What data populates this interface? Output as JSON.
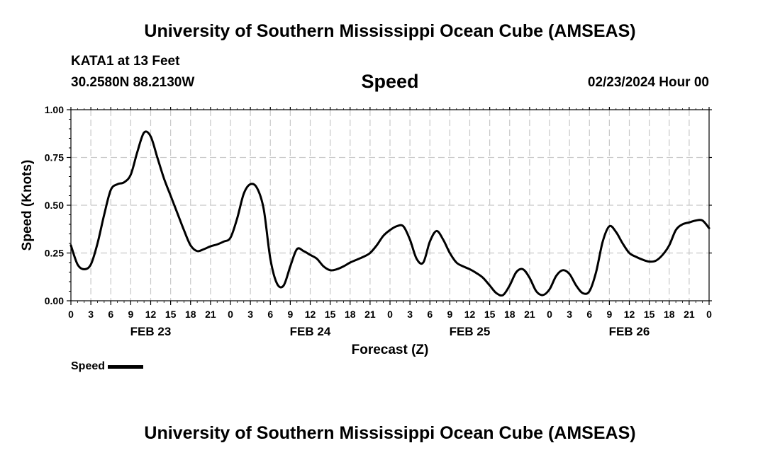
{
  "header": {
    "title": "University of Southern Mississippi Ocean Cube (AMSEAS)",
    "station": "KATA1 at 13 Feet",
    "coordinates": "30.2580N  88.2130W",
    "parameter": "Speed",
    "datetime": "02/23/2024 Hour 00"
  },
  "footer": {
    "title": "University of Southern Mississippi Ocean Cube (AMSEAS)"
  },
  "colors": {
    "line": "#000000",
    "grid": "#c8c8c8",
    "background": "#ffffff"
  },
  "chart_data": {
    "type": "line",
    "title": "Speed",
    "xlabel": "Forecast (Z)",
    "ylabel": "Speed (Knots)",
    "xlim": [
      0,
      96
    ],
    "ylim": [
      0,
      1
    ],
    "y_ticks": [
      0,
      0.25,
      0.5,
      0.75,
      1.0
    ],
    "y_tick_labels": [
      "0.00",
      "0.25",
      "0.50",
      "0.75",
      "1.00"
    ],
    "x_tick_hours": [
      0,
      3,
      6,
      9,
      12,
      15,
      18,
      21,
      24,
      27,
      30,
      33,
      36,
      39,
      42,
      45,
      48,
      51,
      54,
      57,
      60,
      63,
      66,
      69,
      72,
      75,
      78,
      81,
      84,
      87,
      90,
      93,
      96
    ],
    "x_tick_labels": [
      "0",
      "3",
      "6",
      "9",
      "12",
      "15",
      "18",
      "21",
      "0",
      "3",
      "6",
      "9",
      "12",
      "15",
      "18",
      "21",
      "0",
      "3",
      "6",
      "9",
      "12",
      "15",
      "18",
      "21",
      "0",
      "3",
      "6",
      "9",
      "12",
      "15",
      "18",
      "21",
      "0"
    ],
    "day_labels": [
      {
        "hour": 12,
        "label": "FEB 23"
      },
      {
        "hour": 36,
        "label": "FEB 24"
      },
      {
        "hour": 60,
        "label": "FEB 25"
      },
      {
        "hour": 84,
        "label": "FEB 26"
      }
    ],
    "grid": true,
    "legend": {
      "label": "Speed",
      "position": "bottom-left"
    },
    "series": [
      {
        "name": "Speed",
        "x": [
          0,
          1,
          2,
          3,
          4,
          5,
          6,
          7,
          8,
          9,
          10,
          11,
          12,
          13,
          14,
          15,
          16,
          17,
          18,
          19,
          20,
          21,
          22,
          23,
          24,
          25,
          26,
          27,
          28,
          29,
          30,
          31,
          32,
          33,
          34,
          35,
          36,
          37,
          38,
          39,
          40,
          41,
          42,
          43,
          44,
          45,
          46,
          47,
          48,
          49,
          50,
          51,
          52,
          53,
          54,
          55,
          56,
          57,
          58,
          59,
          60,
          61,
          62,
          63,
          64,
          65,
          66,
          67,
          68,
          69,
          70,
          71,
          72,
          73,
          74,
          75,
          76,
          77,
          78,
          79,
          80,
          81,
          82,
          83,
          84,
          85,
          86,
          87,
          88,
          89,
          90,
          91,
          92,
          93,
          94,
          95,
          96
        ],
        "values": [
          0.29,
          0.19,
          0.165,
          0.19,
          0.3,
          0.45,
          0.58,
          0.61,
          0.62,
          0.66,
          0.78,
          0.88,
          0.86,
          0.75,
          0.64,
          0.55,
          0.46,
          0.37,
          0.29,
          0.26,
          0.27,
          0.285,
          0.295,
          0.31,
          0.33,
          0.43,
          0.56,
          0.61,
          0.59,
          0.48,
          0.22,
          0.09,
          0.08,
          0.18,
          0.27,
          0.26,
          0.24,
          0.22,
          0.18,
          0.16,
          0.165,
          0.18,
          0.2,
          0.215,
          0.23,
          0.25,
          0.29,
          0.34,
          0.37,
          0.39,
          0.39,
          0.32,
          0.22,
          0.2,
          0.31,
          0.365,
          0.32,
          0.25,
          0.2,
          0.18,
          0.165,
          0.145,
          0.12,
          0.08,
          0.04,
          0.03,
          0.08,
          0.15,
          0.165,
          0.12,
          0.05,
          0.03,
          0.06,
          0.13,
          0.16,
          0.14,
          0.08,
          0.04,
          0.05,
          0.15,
          0.31,
          0.39,
          0.36,
          0.3,
          0.25,
          0.23,
          0.215,
          0.205,
          0.21,
          0.24,
          0.29,
          0.37,
          0.4,
          0.41,
          0.42,
          0.42,
          0.38
        ]
      }
    ]
  }
}
